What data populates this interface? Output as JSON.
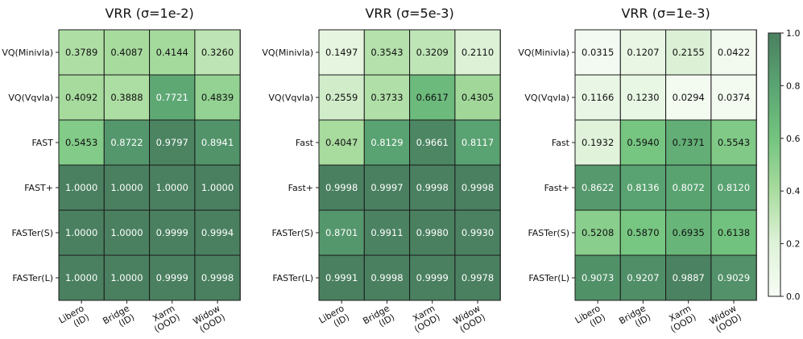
{
  "chart_data": {
    "type": "heatmap",
    "colorbar": {
      "min": 0.0,
      "max": 1.0,
      "ticks": [
        "0.0",
        "0.2",
        "0.4",
        "0.6",
        "0.8",
        "1.0"
      ],
      "colors": [
        "#f7fcf5",
        "#dff2d9",
        "#a9dc9f",
        "#74c480",
        "#5aa472",
        "#4a8060"
      ]
    },
    "columns": [
      [
        "Libero",
        "(ID)"
      ],
      [
        "Bridge",
        "(ID)"
      ],
      [
        "Xarm",
        "(OOD)"
      ],
      [
        "Widow",
        "(OOD)"
      ]
    ],
    "panels": [
      {
        "title": "VRR (σ=1e-2)",
        "rows": [
          "VQ(Minivla)",
          "VQ(Vqvla)",
          "FAST",
          "FAST+",
          "FASTer(S)",
          "FASTer(L)"
        ],
        "values": [
          [
            "0.3789",
            "0.4087",
            "0.4144",
            "0.3260"
          ],
          [
            "0.4092",
            "0.3888",
            "0.7721",
            "0.4839"
          ],
          [
            "0.5453",
            "0.8722",
            "0.9797",
            "0.8941"
          ],
          [
            "1.0000",
            "1.0000",
            "1.0000",
            "1.0000"
          ],
          [
            "1.0000",
            "1.0000",
            "0.9999",
            "0.9994"
          ],
          [
            "1.0000",
            "1.0000",
            "0.9999",
            "0.9998"
          ]
        ]
      },
      {
        "title": "VRR (σ=5e-3)",
        "rows": [
          "VQ(Minivla)",
          "VQ(Vqvla)",
          "Fast",
          "Fast+",
          "FASTer(S)",
          "FASTer(L)"
        ],
        "values": [
          [
            "0.1497",
            "0.3543",
            "0.3209",
            "0.2110"
          ],
          [
            "0.2559",
            "0.3733",
            "0.6617",
            "0.4305"
          ],
          [
            "0.4047",
            "0.8129",
            "0.9661",
            "0.8117"
          ],
          [
            "0.9998",
            "0.9997",
            "0.9998",
            "0.9998"
          ],
          [
            "0.8701",
            "0.9911",
            "0.9980",
            "0.9930"
          ],
          [
            "0.9991",
            "0.9998",
            "0.9999",
            "0.9978"
          ]
        ]
      },
      {
        "title": "VRR (σ=1e-3)",
        "rows": [
          "VQ(Minivla)",
          "VQ(Vqvla)",
          "Fast",
          "Fast+",
          "FASTer(S)",
          "FASTer(L)"
        ],
        "values": [
          [
            "0.0315",
            "0.1207",
            "0.2155",
            "0.0422"
          ],
          [
            "0.1166",
            "0.1230",
            "0.0294",
            "0.0374"
          ],
          [
            "0.1932",
            "0.5940",
            "0.7371",
            "0.5543"
          ],
          [
            "0.8622",
            "0.8136",
            "0.8072",
            "0.8120"
          ],
          [
            "0.5208",
            "0.5870",
            "0.6935",
            "0.6138"
          ],
          [
            "0.9073",
            "0.9207",
            "0.9887",
            "0.9029"
          ]
        ]
      }
    ]
  }
}
